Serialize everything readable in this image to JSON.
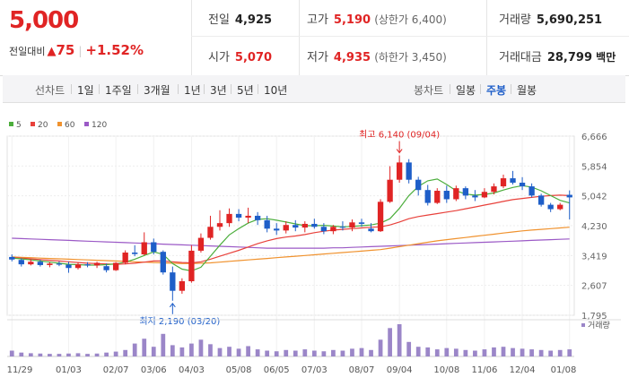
{
  "quote": {
    "price": "5,000",
    "change_label": "전일대비",
    "change_arrow": "▲",
    "change_value": "75",
    "change_pct": "+1.52%",
    "prev_close_label": "전일",
    "prev_close": "4,925",
    "open_label": "시가",
    "open": "5,070",
    "high_label": "고가",
    "high": "5,190",
    "upper_limit": "(상한가 6,400)",
    "low_label": "저가",
    "low": "4,935",
    "lower_limit": "(하한가 3,450)",
    "volume_label": "거래량",
    "volume": "5,690,251",
    "amount_label": "거래대금",
    "amount": "28,799",
    "amount_unit": "백만",
    "up_color": "#e02424"
  },
  "toolbar": {
    "line_chart_label": "선차트",
    "line_periods": [
      "1일",
      "1주일",
      "3개월",
      "1년",
      "3년",
      "5년",
      "10년"
    ],
    "candle_label": "봉차트",
    "candle_periods": [
      "일봉",
      "주봉",
      "월봉"
    ],
    "candle_selected": "주봉"
  },
  "chart_data": {
    "type": "candlestick",
    "legend": [
      {
        "name": "5",
        "color": "#4cae3c"
      },
      {
        "name": "20",
        "color": "#e8413b"
      },
      {
        "name": "60",
        "color": "#f0922e"
      },
      {
        "name": "120",
        "color": "#9b59c6"
      }
    ],
    "ylim": [
      1795,
      6666
    ],
    "y_ticks": [
      "6,666",
      "5,854",
      "5,042",
      "4,230",
      "3,419",
      "2,607",
      "1,795"
    ],
    "x_ticks": [
      "11/29",
      "01/03",
      "02/07",
      "03/06",
      "04/03",
      "05/08",
      "06/05",
      "07/03",
      "08/07",
      "09/04",
      "10/08",
      "11/06",
      "12/04",
      "01/08"
    ],
    "x_tick_index": [
      0,
      6,
      11,
      15,
      19,
      24,
      28,
      32,
      37,
      41,
      46,
      50,
      54,
      59
    ],
    "annotations": {
      "max_label": "최고 6,140 (09/04)",
      "max_index": 41,
      "max_value": 6140,
      "min_label": "최저 2,190 (03/20)",
      "min_index": 17,
      "min_value": 2190
    },
    "volume_label": "거래량",
    "ohlc": [
      [
        3380,
        3450,
        3260,
        3310
      ],
      [
        3300,
        3340,
        3120,
        3180
      ],
      [
        3180,
        3320,
        3150,
        3250
      ],
      [
        3250,
        3300,
        3120,
        3160
      ],
      [
        3160,
        3240,
        3100,
        3200
      ],
      [
        3200,
        3260,
        3130,
        3170
      ],
      [
        3170,
        3250,
        2950,
        3080
      ],
      [
        3080,
        3230,
        3040,
        3180
      ],
      [
        3180,
        3240,
        3100,
        3150
      ],
      [
        3150,
        3250,
        3080,
        3220
      ],
      [
        3130,
        3200,
        2960,
        3020
      ],
      [
        3020,
        3240,
        3000,
        3220
      ],
      [
        3220,
        3560,
        3180,
        3500
      ],
      [
        3500,
        3700,
        3400,
        3460
      ],
      [
        3450,
        4050,
        3420,
        3780
      ],
      [
        3780,
        3880,
        3450,
        3520
      ],
      [
        3520,
        3560,
        2900,
        2960
      ],
      [
        2960,
        3120,
        2190,
        2460
      ],
      [
        2460,
        2800,
        2380,
        2720
      ],
      [
        2720,
        3700,
        2680,
        3550
      ],
      [
        3550,
        4020,
        3500,
        3900
      ],
      [
        3900,
        4500,
        3850,
        4200
      ],
      [
        4200,
        4650,
        4100,
        4300
      ],
      [
        4300,
        4700,
        4200,
        4550
      ],
      [
        4550,
        4680,
        4350,
        4450
      ],
      [
        4450,
        4720,
        4300,
        4500
      ],
      [
        4500,
        4600,
        4250,
        4380
      ],
      [
        4380,
        4500,
        4050,
        4150
      ],
      [
        4150,
        4300,
        3980,
        4100
      ],
      [
        4100,
        4350,
        4020,
        4250
      ],
      [
        4250,
        4380,
        4080,
        4180
      ],
      [
        4180,
        4350,
        4050,
        4280
      ],
      [
        4280,
        4420,
        4150,
        4200
      ],
      [
        4200,
        4300,
        4000,
        4080
      ],
      [
        4080,
        4250,
        4000,
        4200
      ],
      [
        4200,
        4350,
        4100,
        4180
      ],
      [
        4180,
        4400,
        4080,
        4320
      ],
      [
        4320,
        4420,
        4200,
        4280
      ],
      [
        4150,
        4300,
        4050,
        4080
      ],
      [
        4080,
        4950,
        4060,
        4880
      ],
      [
        4880,
        5850,
        4850,
        5480
      ],
      [
        5480,
        6140,
        5400,
        5950
      ],
      [
        5950,
        6040,
        5380,
        5480
      ],
      [
        5480,
        5560,
        5050,
        5200
      ],
      [
        5200,
        5340,
        4780,
        4850
      ],
      [
        4850,
        5250,
        4820,
        5180
      ],
      [
        5180,
        5320,
        4850,
        4950
      ],
      [
        4950,
        5320,
        4900,
        5250
      ],
      [
        5250,
        5300,
        4950,
        5050
      ],
      [
        5050,
        5200,
        4900,
        5000
      ],
      [
        5000,
        5250,
        4980,
        5150
      ],
      [
        5150,
        5380,
        5080,
        5300
      ],
      [
        5300,
        5620,
        5250,
        5520
      ],
      [
        5520,
        5720,
        5350,
        5400
      ],
      [
        5400,
        5550,
        5200,
        5300
      ],
      [
        5300,
        5380,
        5000,
        5050
      ],
      [
        5050,
        5100,
        4750,
        4800
      ],
      [
        4800,
        4850,
        4600,
        4680
      ],
      [
        4680,
        4850,
        4650,
        4800
      ],
      [
        5070,
        5190,
        4400,
        5000
      ]
    ],
    "volume": [
      18,
      12,
      10,
      9,
      8,
      8,
      9,
      10,
      8,
      9,
      12,
      15,
      20,
      40,
      55,
      30,
      70,
      35,
      28,
      40,
      52,
      38,
      26,
      30,
      24,
      32,
      22,
      18,
      16,
      20,
      18,
      22,
      18,
      16,
      20,
      18,
      24,
      26,
      20,
      52,
      88,
      100,
      45,
      30,
      28,
      22,
      26,
      24,
      20,
      18,
      22,
      28,
      30,
      26,
      24,
      22,
      20,
      18,
      20,
      22
    ],
    "ma5": [
      3350,
      3330,
      3300,
      3270,
      3240,
      3210,
      3180,
      3170,
      3160,
      3160,
      3170,
      3190,
      3240,
      3320,
      3420,
      3520,
      3450,
      3200,
      3050,
      3000,
      3100,
      3400,
      3700,
      3980,
      4150,
      4300,
      4400,
      4420,
      4380,
      4330,
      4280,
      4230,
      4230,
      4240,
      4220,
      4200,
      4210,
      4230,
      4250,
      4300,
      4420,
      4700,
      5050,
      5300,
      5450,
      5500,
      5350,
      5180,
      5090,
      5060,
      5080,
      5120,
      5200,
      5270,
      5320,
      5280,
      5180,
      5050,
      4920,
      4850
    ],
    "ma20": [
      3360,
      3350,
      3330,
      3310,
      3290,
      3270,
      3250,
      3230,
      3210,
      3200,
      3190,
      3180,
      3190,
      3210,
      3240,
      3270,
      3270,
      3250,
      3230,
      3220,
      3250,
      3320,
      3400,
      3480,
      3560,
      3650,
      3740,
      3820,
      3880,
      3920,
      3950,
      3990,
      4040,
      4080,
      4110,
      4130,
      4150,
      4170,
      4190,
      4200,
      4250,
      4330,
      4420,
      4480,
      4520,
      4560,
      4600,
      4640,
      4690,
      4740,
      4790,
      4840,
      4890,
      4940,
      4970,
      5000,
      5030,
      5050,
      5060,
      5050
    ],
    "ma60": [
      3380,
      3370,
      3360,
      3350,
      3340,
      3330,
      3320,
      3310,
      3300,
      3290,
      3280,
      3270,
      3260,
      3250,
      3240,
      3230,
      3220,
      3210,
      3200,
      3200,
      3210,
      3220,
      3240,
      3260,
      3280,
      3300,
      3320,
      3340,
      3360,
      3380,
      3400,
      3420,
      3440,
      3460,
      3480,
      3500,
      3520,
      3540,
      3560,
      3580,
      3620,
      3660,
      3700,
      3740,
      3780,
      3820,
      3850,
      3880,
      3910,
      3940,
      3970,
      4000,
      4030,
      4060,
      4090,
      4110,
      4130,
      4150,
      4170,
      4190
    ],
    "ma120": [
      3890,
      3880,
      3870,
      3860,
      3850,
      3840,
      3830,
      3820,
      3810,
      3800,
      3790,
      3780,
      3770,
      3760,
      3750,
      3740,
      3730,
      3720,
      3710,
      3700,
      3690,
      3680,
      3670,
      3660,
      3650,
      3640,
      3630,
      3620,
      3620,
      3620,
      3620,
      3620,
      3620,
      3620,
      3630,
      3630,
      3640,
      3650,
      3660,
      3670,
      3680,
      3690,
      3700,
      3710,
      3720,
      3730,
      3740,
      3750,
      3760,
      3770,
      3780,
      3790,
      3800,
      3810,
      3820,
      3830,
      3840,
      3850,
      3860,
      3870
    ]
  }
}
